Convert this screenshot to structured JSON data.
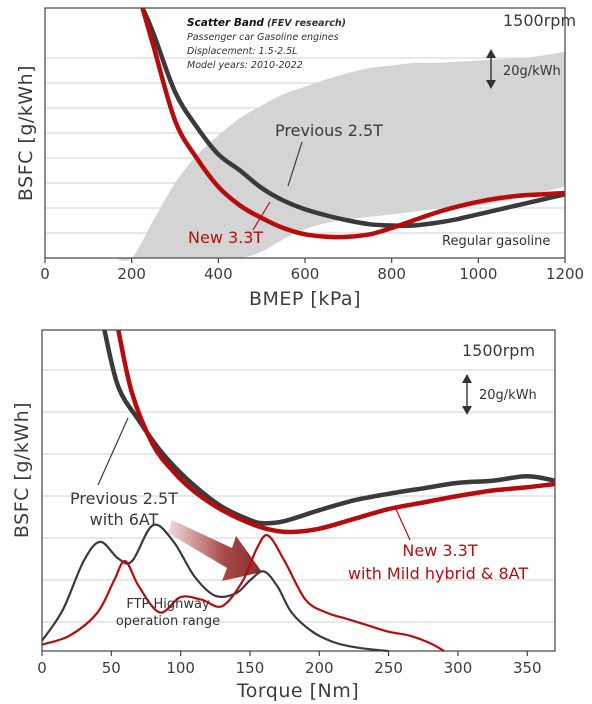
{
  "chart_data": [
    {
      "type": "line",
      "xlabel": "BMEP [kPa]",
      "ylabel": "BSFC [g/kWh]",
      "xlim": [
        0,
        1200
      ],
      "xticks": [
        "0",
        "200",
        "400",
        "600",
        "800",
        "1000",
        "1200"
      ],
      "speed_label": "1500rpm",
      "scale_label": "20g/kWh",
      "fuel_label": "Regular gasoline",
      "band": {
        "title": "Scatter Band",
        "source": "(FEV research)",
        "lines": [
          "Passenger car Gasoline engines",
          "Displacement: 1.5-2.5L",
          "Model years: 2010-2022"
        ],
        "x": [
          160,
          200,
          250,
          300,
          350,
          400,
          450,
          500,
          550,
          600,
          650,
          700,
          750,
          800,
          850,
          900,
          950,
          1000,
          1050,
          1100,
          1150,
          1200
        ],
        "upper": [
          40,
          95,
          140,
          170,
          192,
          208,
          222,
          232,
          241,
          247,
          253,
          258,
          262,
          264,
          266,
          266,
          267,
          268,
          269,
          270,
          272,
          275
        ],
        "lower": [
          -10,
          -10,
          -10,
          -10,
          50,
          82,
          105,
          115,
          125,
          133,
          138,
          141,
          143,
          145,
          147,
          149,
          150,
          152,
          155,
          159,
          163,
          167
        ]
      },
      "series": [
        {
          "name": "Previous 2.5T",
          "color": "#3a3a3a",
          "x": [
            225,
            250,
            300,
            350,
            400,
            450,
            500,
            550,
            600,
            650,
            700,
            750,
            800,
            850,
            900,
            950,
            1000,
            1050,
            1100,
            1150,
            1200
          ],
          "y": [
            330,
            290,
            243,
            215,
            193,
            180,
            166,
            156,
            149,
            144,
            140,
            137,
            136,
            136,
            138,
            141,
            145,
            149,
            153,
            157,
            161
          ]
        },
        {
          "name": "New 3.3T",
          "color": "#b80c0c",
          "x": [
            225,
            250,
            300,
            350,
            400,
            450,
            500,
            550,
            600,
            650,
            700,
            750,
            800,
            850,
            900,
            950,
            1000,
            1050,
            1100,
            1150,
            1200
          ],
          "y": [
            330,
            280,
            220,
            190,
            167,
            152,
            142,
            134,
            129,
            127,
            127,
            129,
            134,
            140,
            146,
            151,
            155,
            158,
            160,
            161,
            162
          ]
        }
      ]
    },
    {
      "type": "line",
      "xlabel": "Torque [Nm]",
      "ylabel": "BSFC [g/kWh]",
      "xlim": [
        0,
        370
      ],
      "xticks": [
        "0",
        "50",
        "100",
        "150",
        "200",
        "250",
        "300",
        "350"
      ],
      "speed_label": "1500rpm",
      "scale_label": "20g/kWh",
      "series": [
        {
          "name": "Previous 2.5T with 6AT",
          "color": "#3a3a3a",
          "x": [
            45,
            55,
            70,
            85,
            100,
            115,
            130,
            150,
            160,
            175,
            200,
            225,
            250,
            275,
            300,
            325,
            350,
            370
          ],
          "y": [
            330,
            278,
            247,
            220,
            199,
            182,
            168,
            156,
            153,
            155,
            165,
            174,
            180,
            185,
            190,
            192,
            196,
            192
          ]
        },
        {
          "name": "New 3.3T with Mild hybrid & 8AT",
          "color": "#b80c0c",
          "x": [
            55,
            65,
            80,
            95,
            110,
            130,
            150,
            165,
            180,
            200,
            225,
            250,
            275,
            300,
            325,
            350,
            370
          ],
          "y": [
            330,
            272,
            225,
            200,
            182,
            165,
            153,
            147,
            145,
            148,
            157,
            166,
            172,
            178,
            183,
            186,
            189
          ]
        }
      ],
      "distributions": {
        "label": "FTP Highway operation range",
        "label_lines": [
          "FTP Highway",
          "operation range"
        ],
        "previous": {
          "x": [
            0,
            15,
            30,
            42,
            55,
            65,
            80,
            95,
            110,
            125,
            140,
            150,
            160,
            170,
            180,
            195,
            210,
            225,
            240,
            250
          ],
          "y": [
            0.08,
            0.32,
            0.7,
            0.85,
            0.72,
            0.7,
            0.98,
            0.85,
            0.58,
            0.43,
            0.45,
            0.55,
            0.62,
            0.5,
            0.3,
            0.15,
            0.07,
            0.03,
            0.01,
            0
          ]
        },
        "new": {
          "x": [
            0,
            20,
            40,
            52,
            60,
            70,
            85,
            100,
            115,
            130,
            145,
            155,
            163,
            175,
            190,
            205,
            220,
            235,
            250,
            265,
            280,
            290
          ],
          "y": [
            0.05,
            0.12,
            0.3,
            0.55,
            0.7,
            0.5,
            0.3,
            0.42,
            0.4,
            0.35,
            0.55,
            0.8,
            0.9,
            0.7,
            0.4,
            0.3,
            0.25,
            0.2,
            0.15,
            0.12,
            0.06,
            0
          ]
        }
      }
    }
  ]
}
